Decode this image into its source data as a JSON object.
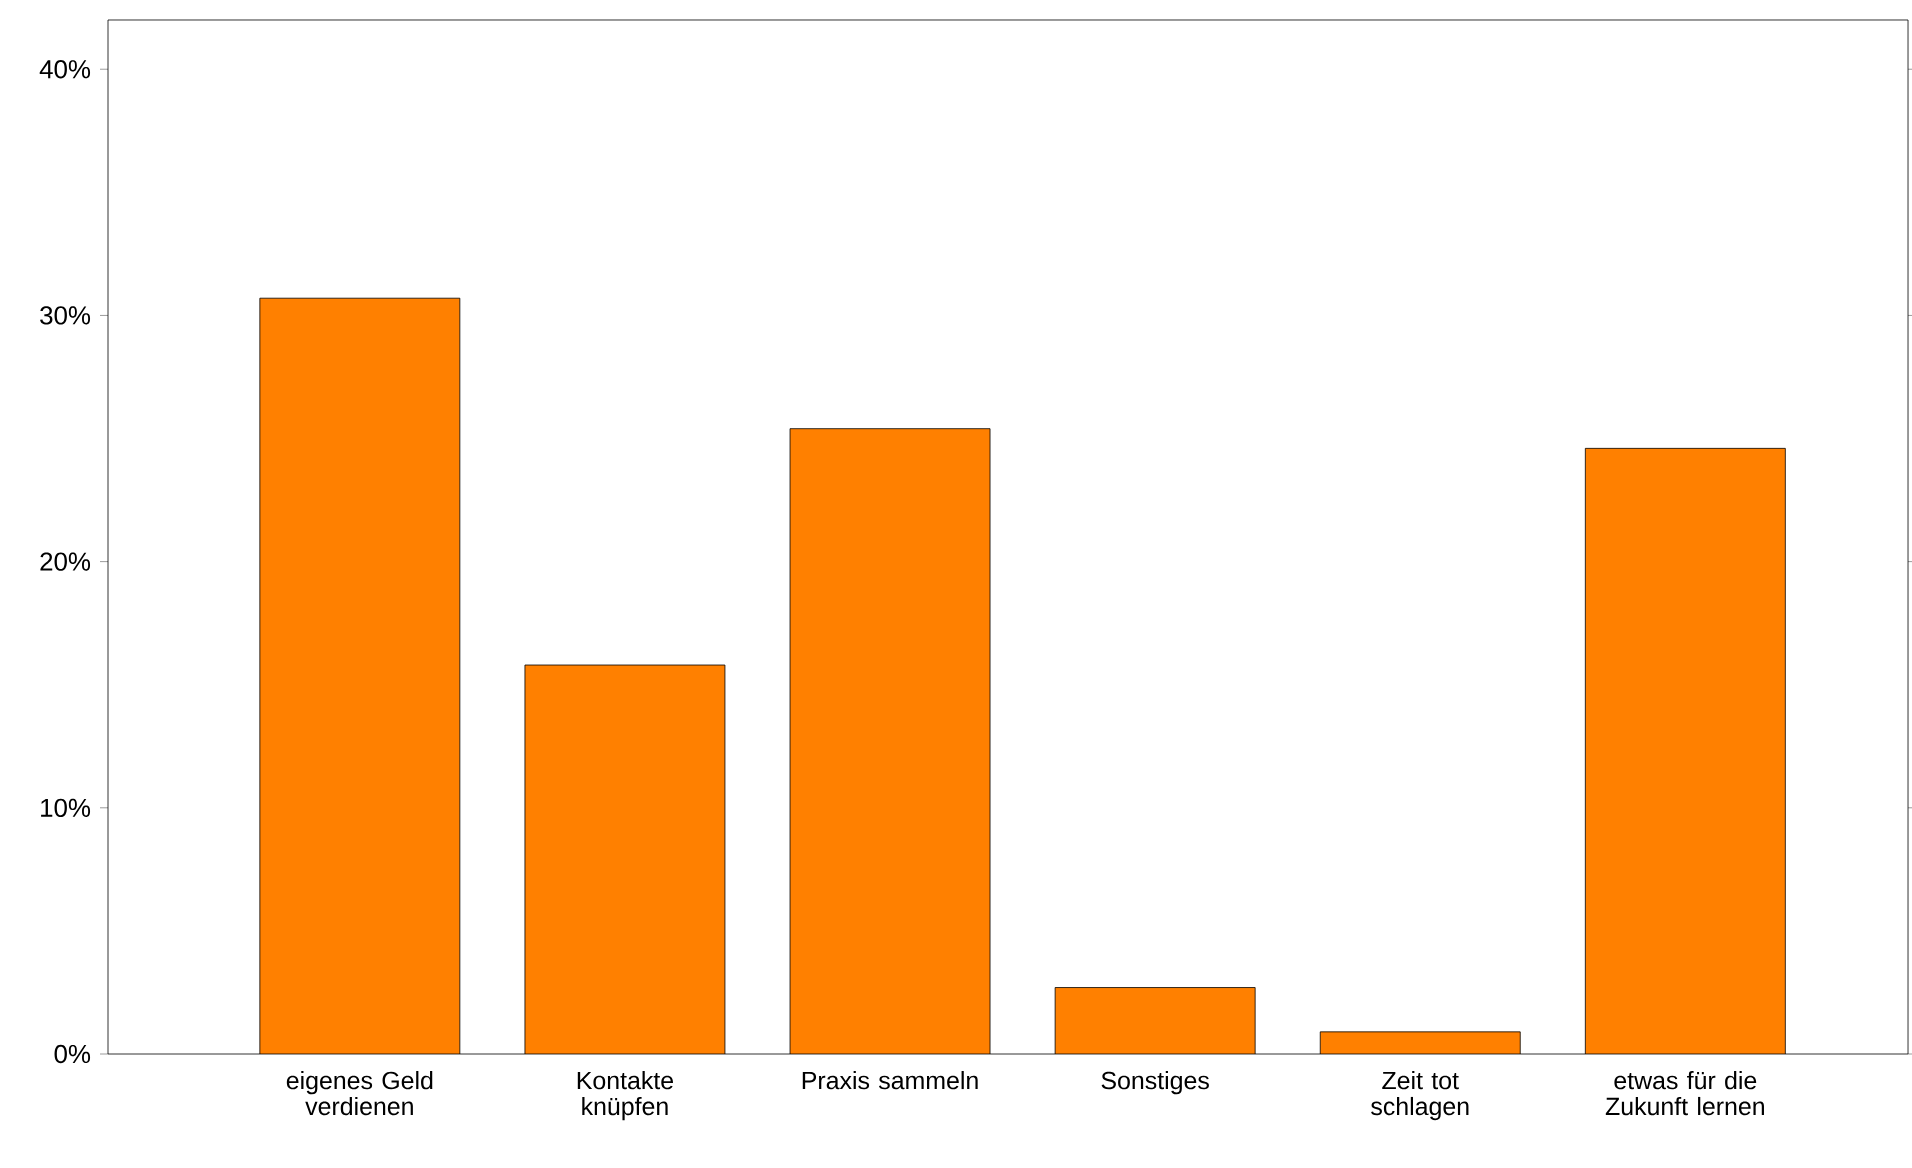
{
  "chart_data": {
    "type": "bar",
    "categories": [
      "eigenes Geld verdienen",
      "Kontakte knüpfen",
      "Praxis sammeln",
      "Sonstiges",
      "Zeit tot schlagen",
      "etwas für die Zukunft lernen"
    ],
    "values": [
      30.7,
      15.8,
      25.4,
      2.7,
      0.9,
      24.6
    ],
    "color": "#ff8000",
    "ylim": [
      0,
      42
    ],
    "yticks": [
      {
        "value": 0,
        "label": "0%"
      },
      {
        "value": 10,
        "label": "10%"
      },
      {
        "value": 20,
        "label": "20%"
      },
      {
        "value": 30,
        "label": "30%"
      },
      {
        "value": 40,
        "label": "40%"
      }
    ],
    "grid": false
  }
}
